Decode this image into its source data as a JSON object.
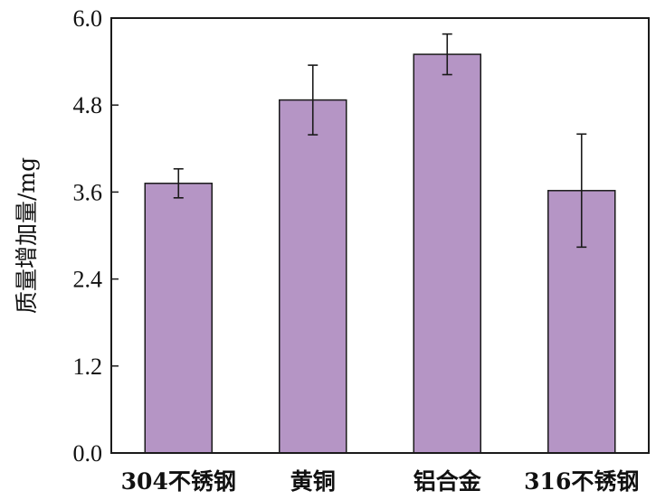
{
  "chart_data": {
    "type": "bar",
    "title": "",
    "xlabel": "",
    "ylabel": "质量增加量/mg",
    "categories": [
      "304不锈钢",
      "黄铜",
      "铝合金",
      "316不锈钢"
    ],
    "values": [
      3.72,
      4.87,
      5.5,
      3.62
    ],
    "error": [
      0.2,
      0.48,
      0.28,
      0.78
    ],
    "ylim": [
      0,
      6.0
    ],
    "yticks": [
      "0.0",
      "1.2",
      "2.4",
      "3.6",
      "4.8",
      "6.0"
    ],
    "grid": false,
    "legend": "none",
    "bar_color": "#b595c5",
    "bar_edge_color": "#1a1a1a",
    "axis_color": "#1a1a1a"
  }
}
